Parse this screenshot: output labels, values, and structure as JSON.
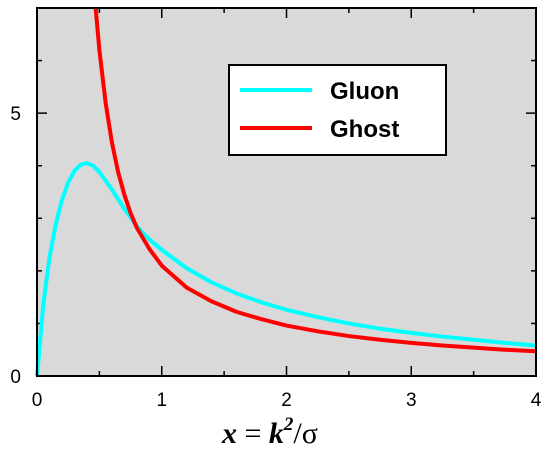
{
  "chart_data": {
    "type": "line",
    "xlabel": {
      "prefix": "x",
      "eq": " = ",
      "k": "k",
      "exp": "2",
      "slash": "/",
      "sigma": "σ"
    },
    "xlim": [
      0,
      4
    ],
    "ylim": [
      0,
      7
    ],
    "x_ticks": [
      "0",
      "1",
      "2",
      "3",
      "4"
    ],
    "y_ticks": [
      "0",
      "5"
    ],
    "background": "#d9d9d9",
    "legend_position": "top-right",
    "series": [
      {
        "name": "Gluon",
        "color": "#00ffff",
        "points": [
          [
            0,
            0
          ],
          [
            0.05,
            1.35
          ],
          [
            0.1,
            2.25
          ],
          [
            0.15,
            2.88
          ],
          [
            0.2,
            3.35
          ],
          [
            0.25,
            3.68
          ],
          [
            0.3,
            3.9
          ],
          [
            0.35,
            4.02
          ],
          [
            0.4,
            4.05
          ],
          [
            0.45,
            4.0
          ],
          [
            0.5,
            3.88
          ],
          [
            0.6,
            3.55
          ],
          [
            0.7,
            3.18
          ],
          [
            0.8,
            2.85
          ],
          [
            0.85,
            2.72
          ],
          [
            0.9,
            2.6
          ],
          [
            1.0,
            2.4
          ],
          [
            1.2,
            2.05
          ],
          [
            1.4,
            1.78
          ],
          [
            1.6,
            1.57
          ],
          [
            1.8,
            1.4
          ],
          [
            2.0,
            1.26
          ],
          [
            2.25,
            1.12
          ],
          [
            2.5,
            1.0
          ],
          [
            2.75,
            0.9
          ],
          [
            3.0,
            0.82
          ],
          [
            3.25,
            0.75
          ],
          [
            3.5,
            0.69
          ],
          [
            3.75,
            0.63
          ],
          [
            4.0,
            0.58
          ]
        ]
      },
      {
        "name": "Ghost",
        "color": "#ff0000",
        "points": [
          [
            0.47,
            7.0
          ],
          [
            0.5,
            6.2
          ],
          [
            0.55,
            5.2
          ],
          [
            0.6,
            4.45
          ],
          [
            0.65,
            3.88
          ],
          [
            0.7,
            3.45
          ],
          [
            0.75,
            3.1
          ],
          [
            0.8,
            2.82
          ],
          [
            0.85,
            2.62
          ],
          [
            0.9,
            2.42
          ],
          [
            1.0,
            2.1
          ],
          [
            1.2,
            1.68
          ],
          [
            1.4,
            1.42
          ],
          [
            1.6,
            1.22
          ],
          [
            1.8,
            1.08
          ],
          [
            2.0,
            0.96
          ],
          [
            2.25,
            0.85
          ],
          [
            2.5,
            0.76
          ],
          [
            2.75,
            0.69
          ],
          [
            3.0,
            0.63
          ],
          [
            3.25,
            0.58
          ],
          [
            3.5,
            0.54
          ],
          [
            3.75,
            0.5
          ],
          [
            4.0,
            0.47
          ]
        ]
      }
    ]
  }
}
